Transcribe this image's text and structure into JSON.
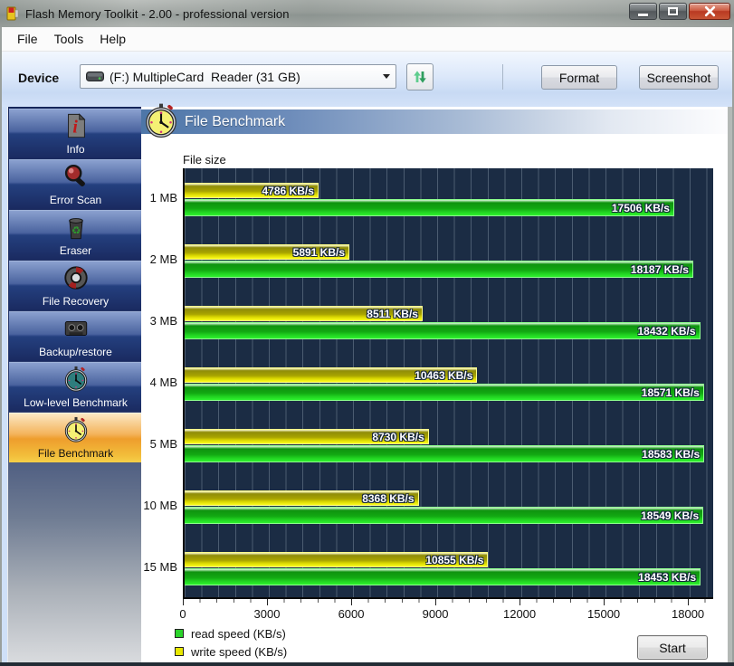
{
  "window": {
    "title": "Flash Memory Toolkit - 2.00 - professional version"
  },
  "menu": {
    "items": [
      "File",
      "Tools",
      "Help"
    ]
  },
  "toolbar": {
    "device_label": "Device",
    "device_value": "(F:) MultipleCard  Reader (31 GB)",
    "format_label": "Format",
    "screenshot_label": "Screenshot"
  },
  "sidebar": {
    "items": [
      {
        "label": "Info",
        "icon": "info-document-icon",
        "selected": false
      },
      {
        "label": "Error Scan",
        "icon": "magnifier-icon",
        "selected": false
      },
      {
        "label": "Eraser",
        "icon": "trash-icon",
        "selected": false
      },
      {
        "label": "File Recovery",
        "icon": "life-ring-icon",
        "selected": false
      },
      {
        "label": "Backup/restore",
        "icon": "cassette-icon",
        "selected": false
      },
      {
        "label": "Low-level Benchmark",
        "icon": "stopwatch-teal-icon",
        "selected": false
      },
      {
        "label": "File Benchmark",
        "icon": "stopwatch-yellow-icon",
        "selected": true
      }
    ]
  },
  "panel": {
    "header_title": "File Benchmark"
  },
  "chart_data": {
    "type": "bar",
    "orientation": "horizontal",
    "title": "File size",
    "categories": [
      "1 MB",
      "2 MB",
      "3 MB",
      "4 MB",
      "5 MB",
      "10 MB",
      "15 MB"
    ],
    "series": [
      {
        "name": "write speed (KB/s)",
        "color": "#e8e800",
        "values": [
          4786,
          5891,
          8511,
          10463,
          8730,
          8368,
          10855
        ]
      },
      {
        "name": "read speed (KB/s)",
        "color": "#2bd42b",
        "values": [
          17506,
          18187,
          18432,
          18571,
          18583,
          18549,
          18453
        ]
      }
    ],
    "value_suffix": " KB/s",
    "xlim": [
      0,
      18900
    ],
    "x_ticks": [
      0,
      3000,
      6000,
      9000,
      12000,
      15000,
      18000
    ],
    "minor_tick_step": 600,
    "grid": true,
    "plot_bg": "#1b2c44",
    "gridline_color": "#4b5c71",
    "legend_position": "bottom-left",
    "legend": [
      {
        "label": "read speed (KB/s)",
        "color": "#2bd42b"
      },
      {
        "label": "write speed (KB/s)",
        "color": "#e8e800"
      }
    ]
  },
  "footer": {
    "start_label": "Start"
  }
}
